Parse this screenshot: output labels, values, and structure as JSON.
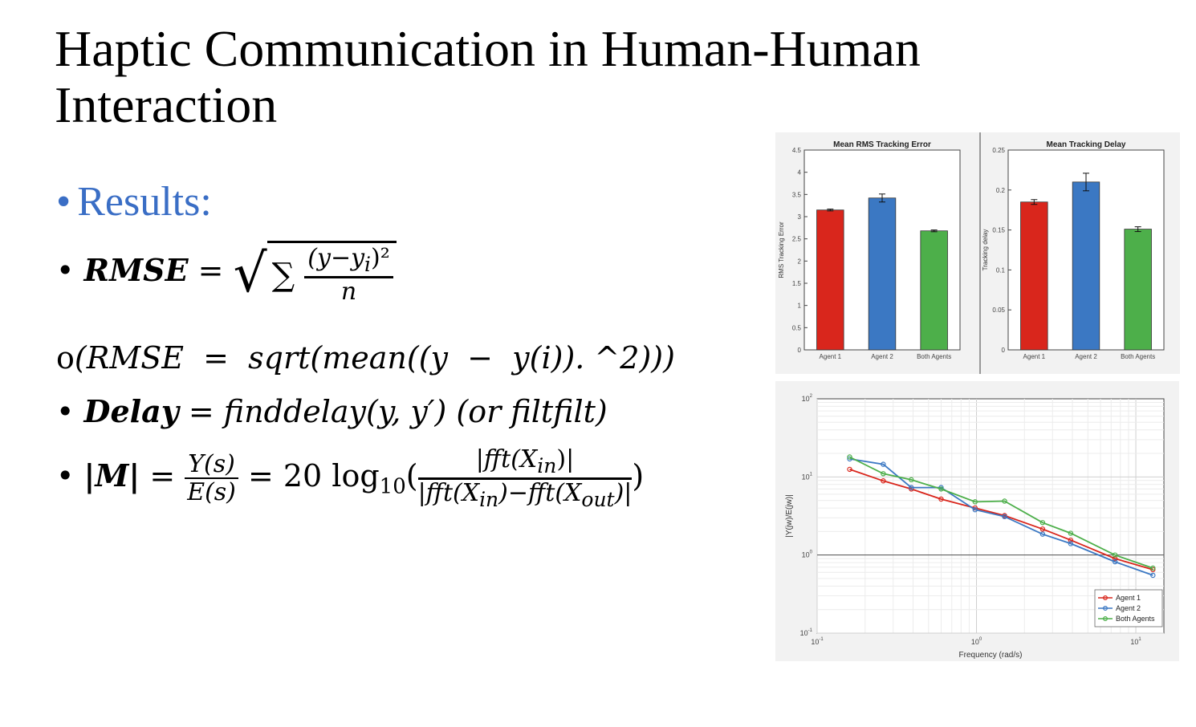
{
  "slide": {
    "title": "Haptic Communication in Human-Human Interaction",
    "results_label": "Results:"
  },
  "equations": {
    "rmse_lhs": "RMSE",
    "rmse_num": "(y−y",
    "rmse_num_sub": "i",
    "rmse_num_tail": ")²",
    "rmse_den": "n",
    "rmse_code": "(RMSE  =  sqrt(mean((y  −  y(i)). ^2)))",
    "delay_lhs": "Delay",
    "delay_rhs": "= finddelay(y, y′) (or filtfilt)",
    "m_lhs": "|M|",
    "m_frac_num": "Y(s)",
    "m_frac_den": "E(s)",
    "m_mid": "= 20 log",
    "m_sub": "10",
    "m_big_num": "|fft(X",
    "m_big_num_sub": "in",
    "m_big_den": "|fft(X",
    "m_big_den_sub1": "in",
    "m_big_den_mid": ")−fft(X",
    "m_big_den_sub2": "out",
    "m_big_den_tail": ")|"
  },
  "chart_data": [
    {
      "type": "bar",
      "title": "Mean RMS Tracking Error",
      "ylabel": "RMS Tracking Error",
      "categories": [
        "Agent 1",
        "Agent 2",
        "Both Agents"
      ],
      "values": [
        3.15,
        3.42,
        2.68
      ],
      "errors": [
        0.02,
        0.09,
        0.02
      ],
      "colors": [
        "#d9261c",
        "#3b78c3",
        "#4daf4a"
      ],
      "ylim": [
        0,
        4.5
      ],
      "yticks": [
        "0",
        "0.5",
        "1",
        "1.5",
        "2",
        "2.5",
        "3",
        "3.5",
        "4",
        "4.5"
      ]
    },
    {
      "type": "bar",
      "title": "Mean Tracking Delay",
      "ylabel": "Tracking delay",
      "categories": [
        "Agent 1",
        "Agent 2",
        "Both Agents"
      ],
      "values": [
        0.185,
        0.21,
        0.151
      ],
      "errors": [
        0.003,
        0.011,
        0.003
      ],
      "colors": [
        "#d9261c",
        "#3b78c3",
        "#4daf4a"
      ],
      "ylim": [
        0,
        0.25
      ],
      "yticks": [
        "0",
        "0.05",
        "0.1",
        "0.15",
        "0.2",
        "0.25"
      ]
    },
    {
      "type": "line",
      "scale": "log-log",
      "xlabel": "Frequency (rad/s)",
      "ylabel": "|Y(jw)/E(jw)|",
      "xlim": [
        0.1,
        15
      ],
      "ylim": [
        0.1,
        100
      ],
      "grid": true,
      "legend_position": "bottom-right",
      "x": [
        0.16,
        0.26,
        0.39,
        0.6,
        0.98,
        1.5,
        2.6,
        3.9,
        7.4,
        12.8
      ],
      "series": [
        {
          "name": "Agent 1",
          "color": "#d9261c",
          "values": [
            12.5,
            8.9,
            7.0,
            5.2,
            4.0,
            3.2,
            2.15,
            1.55,
            0.9,
            0.65
          ]
        },
        {
          "name": "Agent 2",
          "color": "#3b78c3",
          "values": [
            17.0,
            14.5,
            7.3,
            7.3,
            3.8,
            3.1,
            1.85,
            1.4,
            0.82,
            0.55
          ]
        },
        {
          "name": "Both Agents",
          "color": "#4daf4a",
          "values": [
            18.0,
            11.0,
            9.2,
            7.0,
            4.8,
            4.9,
            2.6,
            1.9,
            1.0,
            0.68
          ]
        }
      ],
      "xticks": [
        "10",
        "10",
        "10"
      ],
      "xtick_exps": [
        "-1",
        "0",
        "1"
      ],
      "yticks": [
        "10",
        "10",
        "10",
        "10"
      ],
      "ytick_exps": [
        "-1",
        "0",
        "1",
        "2"
      ]
    }
  ]
}
